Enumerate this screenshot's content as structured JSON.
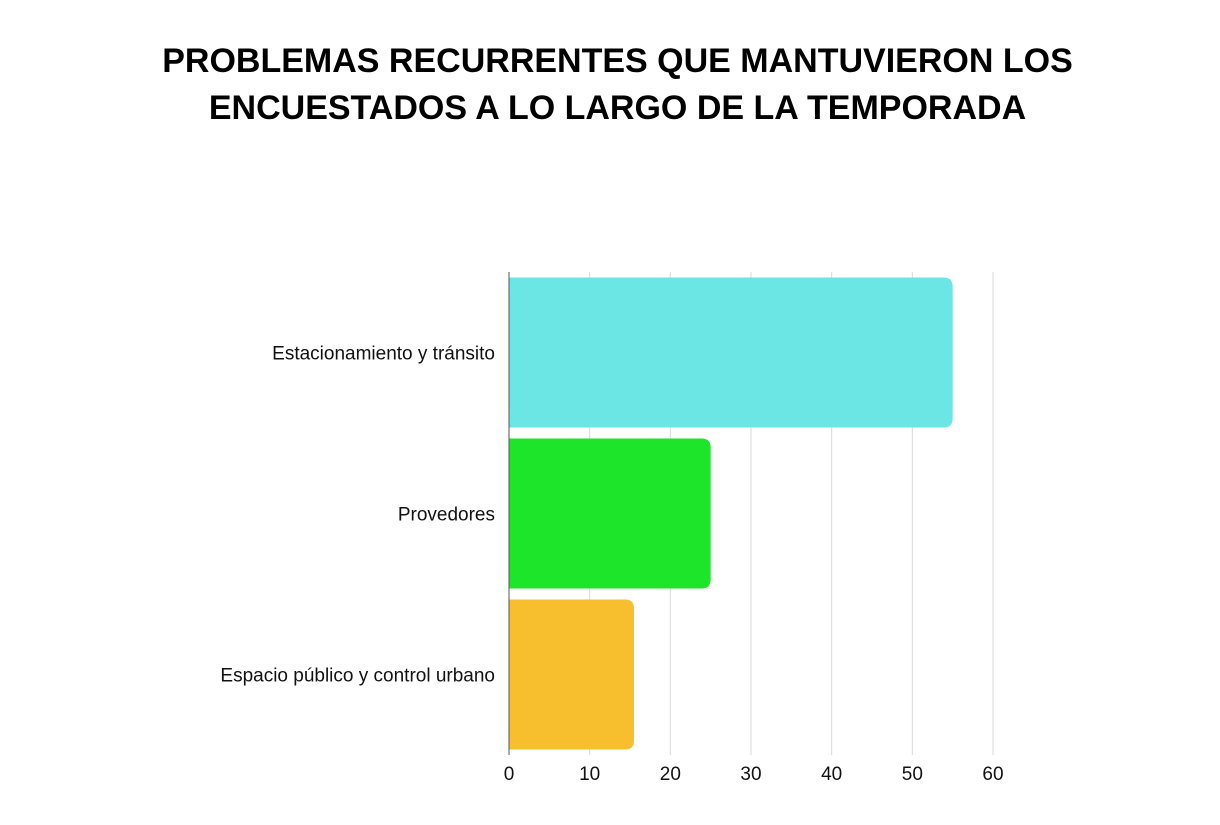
{
  "chart_data": {
    "type": "bar",
    "orientation": "horizontal",
    "title": [
      "PROBLEMAS RECURRENTES QUE MANTUVIERON LOS",
      "ENCUESTADOS A LO LARGO DE LA TEMPORADA"
    ],
    "categories": [
      "Estacionamiento y tránsito",
      "Provedores",
      "Espacio público y control urbano"
    ],
    "values": [
      55,
      25,
      15.5
    ],
    "colors": [
      "#6ce5e5",
      "#1de62a",
      "#f7bf2d"
    ],
    "xlim": [
      0,
      60
    ],
    "xticks": [
      0,
      10,
      20,
      30,
      40,
      50,
      60
    ],
    "xlabel": "",
    "ylabel": "",
    "grid": true
  }
}
